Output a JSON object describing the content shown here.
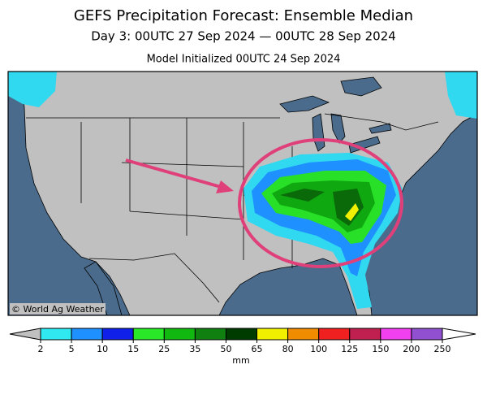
{
  "title": "GEFS Precipitation Forecast: Ensemble Median",
  "subtitle": "Day 3: 00UTC 27 Sep 2024 — 00UTC 28 Sep 2024",
  "initialized": "Model Initialized 00UTC 24 Sep 2024",
  "credit": "© World Ag Weather",
  "colorbar": {
    "levels": [
      2,
      5,
      10,
      15,
      25,
      35,
      50,
      65,
      80,
      100,
      125,
      150,
      200,
      250
    ],
    "colors": [
      "#30e8f0",
      "#1e90ff",
      "#1020e8",
      "#28e828",
      "#10b810",
      "#108010",
      "#003c00",
      "#f0f000",
      "#f08c00",
      "#f02020",
      "#c02050",
      "#f040f0",
      "#9050d0"
    ],
    "unit": "mm"
  }
}
